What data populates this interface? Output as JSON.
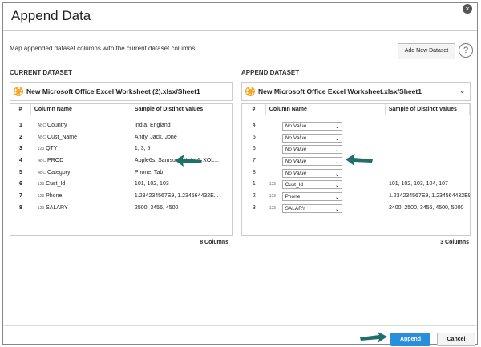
{
  "dialog": {
    "title": "Append Data",
    "subtitle": "Map appended dataset columns with the current dataset columns",
    "add_dataset_label": "Add New Dataset",
    "help_label": "?",
    "close_label": "×"
  },
  "current": {
    "label": "CURRENT DATASET",
    "dataset": "New Microsoft Office Excel Worksheet (2).xlsx/Sheet1",
    "headers": [
      "#",
      "Column Name",
      "Sample of Distinct Values"
    ],
    "rows": [
      {
        "n": "1",
        "type": "ABC",
        "name": "Country",
        "sample": "India, England"
      },
      {
        "n": "2",
        "type": "ABC",
        "name": "Cust_Name",
        "sample": "Andy, Jack, Jone"
      },
      {
        "n": "3",
        "type": "123",
        "name": "QTY",
        "sample": "1, 3, 5"
      },
      {
        "n": "4",
        "type": "ABC",
        "name": "PROD",
        "sample": "Apple6s, Samsung Note 4, XOL..."
      },
      {
        "n": "5",
        "type": "ABC",
        "name": "Category",
        "sample": "Phone, Tab"
      },
      {
        "n": "6",
        "type": "123",
        "name": "Cust_Id",
        "sample": "101, 102, 103"
      },
      {
        "n": "7",
        "type": "123",
        "name": "Phone",
        "sample": "1.234234567E9, 1.234564432E..."
      },
      {
        "n": "8",
        "type": "123",
        "name": "SALARY",
        "sample": "2500, 3456, 4500"
      }
    ],
    "count": "8 Columns"
  },
  "append": {
    "label": "APPEND DATASET",
    "dataset": "New Microsoft Office Excel Worksheet.xlsx/Sheet1",
    "headers": [
      "#",
      "Column Name",
      "Sample of Distinct Values"
    ],
    "rows": [
      {
        "n": "4",
        "type": "",
        "name": "No Value",
        "sample": ""
      },
      {
        "n": "5",
        "type": "",
        "name": "No Value",
        "sample": ""
      },
      {
        "n": "6",
        "type": "",
        "name": "No Value",
        "sample": ""
      },
      {
        "n": "7",
        "type": "",
        "name": "No Value",
        "sample": ""
      },
      {
        "n": "8",
        "type": "",
        "name": "No Value",
        "sample": ""
      },
      {
        "n": "1",
        "type": "123",
        "name": "Cust_Id",
        "sample": "101, 102, 103, 104, 107"
      },
      {
        "n": "2",
        "type": "123",
        "name": "Phone",
        "sample": "1.234234567E9, 1.234564432E9..."
      },
      {
        "n": "3",
        "type": "123",
        "name": "SALARY",
        "sample": "2400, 2500, 3456, 4500, 5000"
      }
    ],
    "count": "3 Columns"
  },
  "footer": {
    "append_label": "Append",
    "cancel_label": "Cancel"
  },
  "colors": {
    "accent": "#2a8fdb",
    "arrow": "#1f6f6a",
    "dataset_icon": "#f5a623"
  }
}
